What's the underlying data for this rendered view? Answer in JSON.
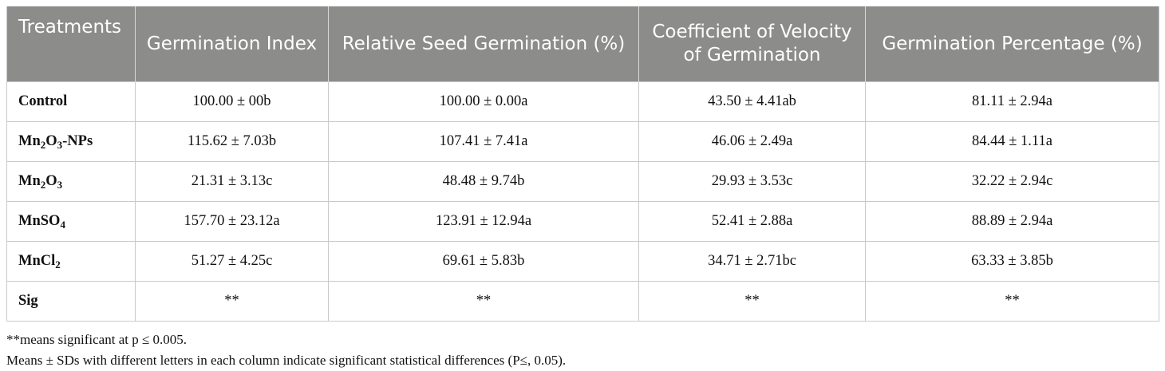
{
  "table": {
    "headers": [
      "Treatments",
      "Germination Index",
      "Relative Seed Germination (%)",
      "Coefficient of Velocity of Germination",
      "Germination Percentage (%)"
    ],
    "rows": [
      {
        "treatment": {
          "base": "Control",
          "parts": []
        },
        "cells": [
          "100.00 ± 00b",
          "100.00 ± 0.00a",
          "43.50 ± 4.41ab",
          "81.11 ± 2.94a"
        ]
      },
      {
        "treatment": {
          "base": "Mn₂O₃-NPs",
          "parts": [
            {
              "t": "Mn"
            },
            {
              "s": "2"
            },
            {
              "t": "O"
            },
            {
              "s": "3"
            },
            {
              "t": "-NPs"
            }
          ]
        },
        "cells": [
          "115.62 ± 7.03b",
          "107.41 ± 7.41a",
          "46.06 ± 2.49a",
          "84.44 ± 1.11a"
        ]
      },
      {
        "treatment": {
          "base": "Mn₂O₃",
          "parts": [
            {
              "t": "Mn"
            },
            {
              "s": "2"
            },
            {
              "t": "O"
            },
            {
              "s": "3"
            }
          ]
        },
        "cells": [
          "21.31 ± 3.13c",
          "48.48 ± 9.74b",
          "29.93 ± 3.53c",
          "32.22 ± 2.94c"
        ]
      },
      {
        "treatment": {
          "base": "MnSO₄",
          "parts": [
            {
              "t": "MnSO"
            },
            {
              "s": "4"
            }
          ]
        },
        "cells": [
          "157.70 ± 23.12a",
          "123.91 ± 12.94a",
          "52.41 ± 2.88a",
          "88.89 ± 2.94a"
        ]
      },
      {
        "treatment": {
          "base": "MnCl₂",
          "parts": [
            {
              "t": "MnCl"
            },
            {
              "s": "2"
            }
          ]
        },
        "cells": [
          "51.27 ± 4.25c",
          "69.61 ± 5.83b",
          "34.71 ± 2.71bc",
          "63.33 ± 3.85b"
        ]
      },
      {
        "treatment": {
          "base": "Sig",
          "parts": []
        },
        "cells": [
          "**",
          "**",
          "**",
          "**"
        ]
      }
    ]
  },
  "footnotes": [
    "**means significant at p ≤ 0.005.",
    "Means ± SDs with different letters in each column indicate significant statistical differences (P≤, 0.05)."
  ],
  "colors": {
    "header_bg": "#8c8c8a",
    "header_text": "#ffffff",
    "grid": "#c9c9c9"
  }
}
